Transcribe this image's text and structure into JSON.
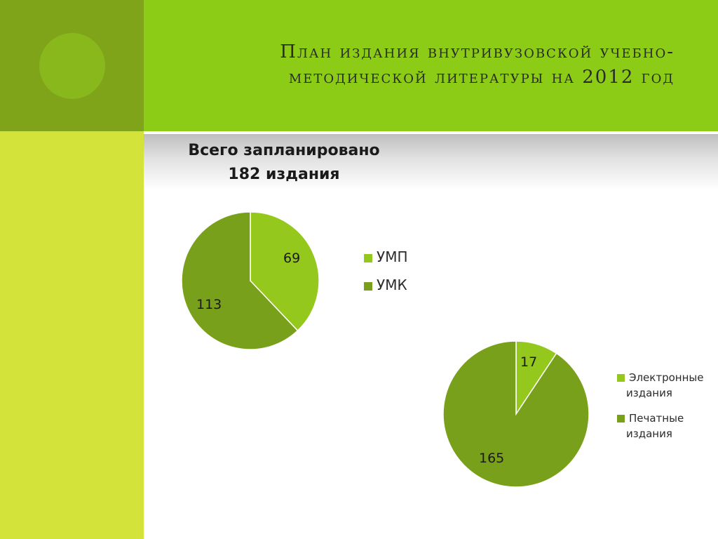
{
  "slide": {
    "title_line1": "План издания внутривузовской учебно-",
    "title_line2": "методической литературы на 2012 год",
    "subtitle_line1": "Всего запланировано",
    "subtitle_line2": "182 издания"
  },
  "chart_data": [
    {
      "type": "pie",
      "legend_position": "right",
      "series": [
        {
          "name": "УМП",
          "value": 69,
          "color": "#94c81d"
        },
        {
          "name": "УМК",
          "value": 113,
          "color": "#79a01a"
        }
      ]
    },
    {
      "type": "pie",
      "legend_position": "right",
      "series": [
        {
          "name": "Электронные издания",
          "value": 17,
          "color": "#94c81d"
        },
        {
          "name": "Печатные издания",
          "value": 165,
          "color": "#79a01a"
        }
      ]
    }
  ],
  "colors": {
    "frame_light": "#d4e339",
    "frame_dark": "#7fa41a",
    "title_band": "#8ccc17"
  }
}
